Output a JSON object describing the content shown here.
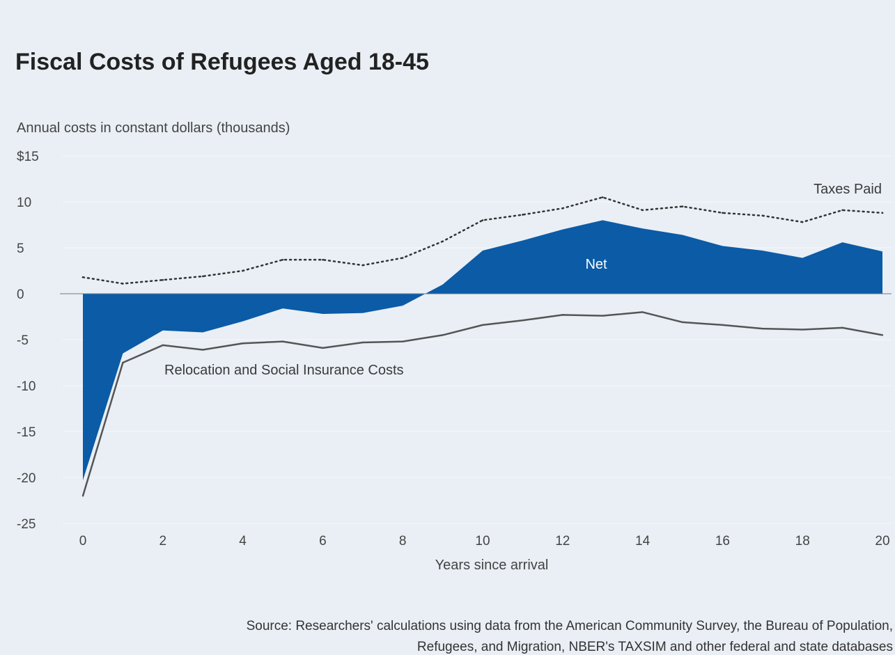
{
  "chart_data": {
    "type": "area",
    "title": "Fiscal Costs of Refugees Aged 18-45",
    "ylabel": "Annual costs in constant dollars (thousands)",
    "xlabel": "Years since arrival",
    "ylim": [
      -25,
      15
    ],
    "xlim": [
      0,
      20
    ],
    "y_ticks": [
      "$15",
      "10",
      "5",
      "0",
      "-5",
      "-10",
      "-15",
      "-20",
      "-25"
    ],
    "y_tick_values": [
      15,
      10,
      5,
      0,
      -5,
      -10,
      -15,
      -20,
      -25
    ],
    "x_ticks": [
      "0",
      "2",
      "4",
      "6",
      "8",
      "10",
      "12",
      "14",
      "16",
      "18",
      "20"
    ],
    "x_tick_values": [
      0,
      2,
      4,
      6,
      8,
      10,
      12,
      14,
      16,
      18,
      20
    ],
    "grid": true,
    "x": [
      0,
      1,
      2,
      3,
      4,
      5,
      6,
      7,
      8,
      9,
      10,
      11,
      12,
      13,
      14,
      15,
      16,
      17,
      18,
      19,
      20
    ],
    "series": [
      {
        "name": "Net",
        "style": "area",
        "values": [
          -20.3,
          -6.5,
          -4.0,
          -4.2,
          -3.0,
          -1.6,
          -2.2,
          -2.1,
          -1.3,
          1.0,
          4.7,
          5.8,
          7.0,
          8.0,
          7.1,
          6.4,
          5.2,
          4.7,
          3.9,
          5.6,
          4.6
        ]
      },
      {
        "name": "Taxes Paid",
        "style": "dotted",
        "values": [
          1.8,
          1.1,
          1.5,
          1.9,
          2.5,
          3.7,
          3.7,
          3.1,
          3.9,
          5.7,
          8.0,
          8.6,
          9.3,
          10.5,
          9.1,
          9.5,
          8.8,
          8.5,
          7.8,
          9.1,
          8.8
        ]
      },
      {
        "name": "Relocation and Social Insurance Costs",
        "style": "line",
        "values": [
          -22.0,
          -7.5,
          -5.6,
          -6.1,
          -5.4,
          -5.2,
          -5.9,
          -5.3,
          -5.2,
          -4.5,
          -3.4,
          -2.9,
          -2.3,
          -2.4,
          -2.0,
          -3.1,
          -3.4,
          -3.8,
          -3.9,
          -3.7,
          -4.5
        ]
      }
    ],
    "annotations": {
      "net": "Net",
      "taxes": "Taxes Paid",
      "costs": "Relocation and Social Insurance Costs"
    },
    "colors": {
      "background": "#e9eff5",
      "net": "#0b5ba6",
      "taxes": "#333333",
      "costs": "#555555",
      "grid": "#f7f9fb"
    }
  },
  "source": {
    "line1": "Source: Researchers' calculations using data from the American Community Survey, the Bureau of Population,",
    "line2": "Refugees, and Migration, NBER's TAXSIM and other federal and state databases"
  }
}
